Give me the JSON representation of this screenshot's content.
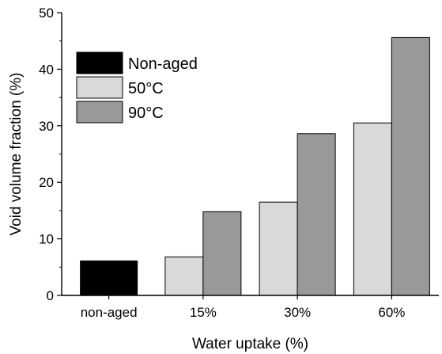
{
  "chart_data": {
    "type": "bar",
    "categories": [
      "non-aged",
      "15%",
      "30%",
      "60%"
    ],
    "series": [
      {
        "name": "Non-aged",
        "color": "#000000",
        "values": [
          6.1,
          null,
          null,
          null
        ]
      },
      {
        "name": "50°C",
        "color": "#d9d9d9",
        "values": [
          null,
          6.8,
          16.5,
          30.5
        ]
      },
      {
        "name": "90°C",
        "color": "#999999",
        "values": [
          null,
          14.8,
          28.6,
          45.6
        ]
      }
    ],
    "xlabel": "Water uptake (%)",
    "ylabel": "Void volume fraction (%)",
    "ylim": [
      0,
      50
    ],
    "yticks": [
      0,
      10,
      20,
      30,
      40,
      50
    ],
    "grid": false,
    "legend_position": "top-left"
  }
}
